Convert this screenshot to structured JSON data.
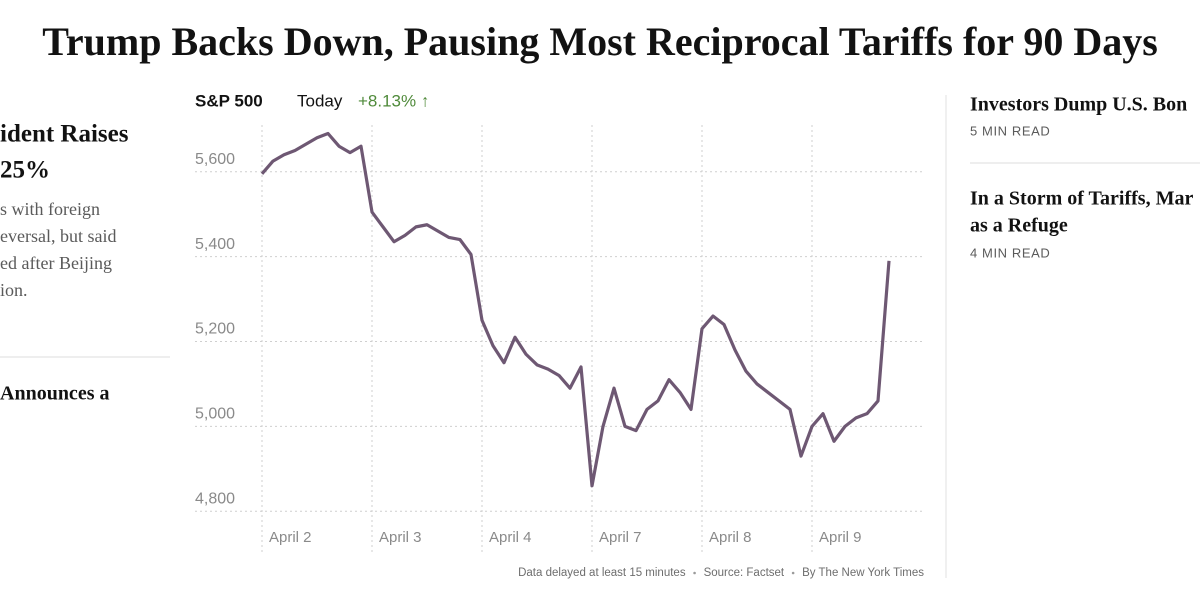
{
  "headline": "Trump Backs Down, Pausing Most Reciprocal Tariffs for 90 Days",
  "left_column": {
    "story1_title": [
      "ident Raises",
      "25%"
    ],
    "story1_summary": [
      "s with foreign",
      "eversal, but said",
      "ed after Beijing",
      "ion."
    ],
    "story2_title": "Announces a"
  },
  "right_column": [
    {
      "title": [
        "Investors Dump U.S. Bon"
      ],
      "read_time": "5 MIN READ"
    },
    {
      "title": [
        "In a Storm of Tariffs, Mar",
        "as a Refuge"
      ],
      "read_time": "4 MIN READ"
    }
  ],
  "chart_data": {
    "type": "line",
    "title": "S&P 500",
    "period": "Today",
    "change": "+8.13% ↑",
    "footnotes": [
      "Data delayed at least 15 minutes",
      "Source: Factset",
      "By The New York Times"
    ],
    "color": "#6e5873",
    "grid": true,
    "categories": [
      "April 2",
      null,
      null,
      null,
      null,
      null,
      null,
      null,
      null,
      null,
      "April 3",
      null,
      null,
      null,
      null,
      null,
      null,
      null,
      null,
      null,
      "April 4",
      null,
      null,
      null,
      null,
      null,
      null,
      null,
      null,
      null,
      "April 7",
      null,
      null,
      null,
      null,
      null,
      null,
      null,
      null,
      null,
      "April 8",
      null,
      null,
      null,
      null,
      null,
      null,
      null,
      null,
      null,
      "April 9",
      null,
      null,
      null,
      null,
      null,
      null,
      null
    ],
    "values": [
      5595,
      5625,
      5640,
      5650,
      5665,
      5680,
      5690,
      5660,
      5645,
      5660,
      5505,
      5470,
      5435,
      5450,
      5470,
      5475,
      5460,
      5445,
      5440,
      5405,
      5250,
      5190,
      5150,
      5210,
      5170,
      5145,
      5135,
      5120,
      5090,
      5140,
      4860,
      5000,
      5090,
      5000,
      4990,
      5040,
      5060,
      5110,
      5080,
      5040,
      5230,
      5260,
      5240,
      5180,
      5130,
      5100,
      5080,
      5060,
      5040,
      4930,
      5000,
      5030,
      4965,
      5000,
      5020,
      5030,
      5060,
      5390
    ],
    "ylim": [
      4730,
      5710
    ],
    "yticks": [
      {
        "value": 4800,
        "label": "4,800"
      },
      {
        "value": 5000,
        "label": "5,000"
      },
      {
        "value": 5200,
        "label": "5,200"
      },
      {
        "value": 5400,
        "label": "5,400"
      },
      {
        "value": 5600,
        "label": "5,600"
      }
    ]
  }
}
